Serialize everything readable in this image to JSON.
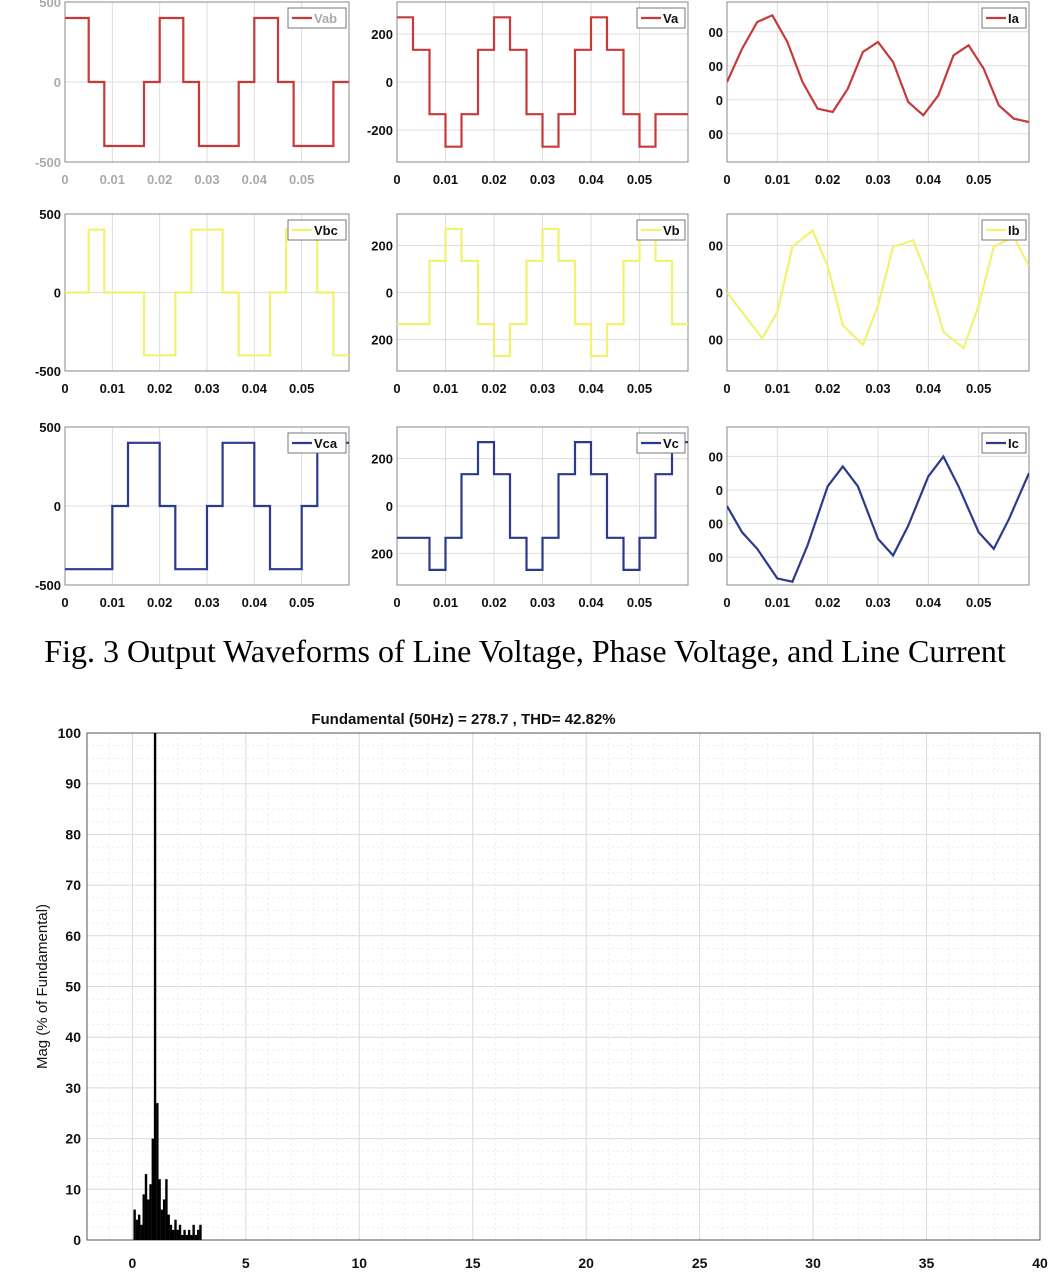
{
  "caption": "Fig. 3 Output Waveforms of Line Voltage, Phase Voltage, and Line Current",
  "chart_data": [
    {
      "id": "vab",
      "type": "line",
      "legend": "Vab",
      "color": "#c83a3a",
      "faint": true,
      "xlim": [
        0,
        0.06
      ],
      "ylim": [
        -500,
        500
      ],
      "xticks": [
        "0",
        "0.01",
        "0.02",
        "0.03",
        "0.04",
        "0.05"
      ],
      "yticks": [
        "500",
        "0",
        "-500"
      ],
      "x": [
        0,
        0.0017,
        0.0017,
        0.005,
        0.005,
        0.0083,
        0.0083,
        0.0167,
        0.0167,
        0.02,
        0.02,
        0.0217,
        0.0217,
        0.025,
        0.025,
        0.0283,
        0.0283,
        0.0367,
        0.0367,
        0.04,
        0.04,
        0.0417,
        0.0417,
        0.045,
        0.045,
        0.0483,
        0.0483,
        0.0567,
        0.0567,
        0.06
      ],
      "y": [
        400,
        400,
        400,
        400,
        0,
        0,
        -400,
        -400,
        0,
        0,
        400,
        400,
        400,
        400,
        0,
        0,
        -400,
        -400,
        0,
        0,
        400,
        400,
        400,
        400,
        0,
        0,
        -400,
        -400,
        0,
        0
      ]
    },
    {
      "id": "va",
      "type": "line",
      "legend": "Va",
      "color": "#c83a3a",
      "xlim": [
        0,
        0.06
      ],
      "ylim": [
        -330,
        330
      ],
      "xticks": [
        "0",
        "0.01",
        "0.02",
        "0.03",
        "0.04",
        "0.05"
      ],
      "yticks": [
        "200",
        "0",
        "-200"
      ],
      "x": [
        0,
        0.0033,
        0.0033,
        0.0067,
        0.0067,
        0.01,
        0.01,
        0.0133,
        0.0133,
        0.0167,
        0.0167,
        0.02,
        0.02,
        0.0233,
        0.0233,
        0.0267,
        0.0267,
        0.03,
        0.03,
        0.0333,
        0.0333,
        0.0367,
        0.0367,
        0.04,
        0.04,
        0.0433,
        0.0433,
        0.0467,
        0.0467,
        0.05,
        0.05,
        0.0533,
        0.0533,
        0.0567,
        0.0567,
        0.06
      ],
      "y": [
        267,
        267,
        133,
        133,
        -133,
        -133,
        -267,
        -267,
        -133,
        -133,
        133,
        133,
        267,
        267,
        133,
        133,
        -133,
        -133,
        -267,
        -267,
        -133,
        -133,
        133,
        133,
        267,
        267,
        133,
        133,
        -133,
        -133,
        -267,
        -267,
        -133,
        -133,
        -133,
        -133
      ]
    },
    {
      "id": "ia",
      "type": "line",
      "legend": "Ia",
      "color": "#c83a3a",
      "xlim": [
        0,
        0.06
      ],
      "ylim": [
        -1.2,
        1.2
      ],
      "xticks": [
        "0",
        "0.01",
        "0.02",
        "0.03",
        "0.04",
        "0.05"
      ],
      "yticks": [
        "00",
        "00",
        "0",
        "00"
      ],
      "x": [
        0,
        0.003,
        0.006,
        0.009,
        0.012,
        0.015,
        0.018,
        0.021,
        0.024,
        0.027,
        0.03,
        0.033,
        0.036,
        0.039,
        0.042,
        0.045,
        0.048,
        0.051,
        0.054,
        0.057,
        0.06
      ],
      "y": [
        0,
        0.5,
        0.9,
        1.0,
        0.6,
        0.0,
        -0.4,
        -0.45,
        -0.1,
        0.45,
        0.6,
        0.3,
        -0.3,
        -0.5,
        -0.2,
        0.4,
        0.55,
        0.2,
        -0.35,
        -0.55,
        -0.6
      ]
    },
    {
      "id": "vbc",
      "type": "line",
      "legend": "Vbc",
      "color": "#f4f170",
      "xlim": [
        0,
        0.06
      ],
      "ylim": [
        -500,
        500
      ],
      "xticks": [
        "0",
        "0.01",
        "0.02",
        "0.03",
        "0.04",
        "0.05"
      ],
      "yticks": [
        "500",
        "0",
        "-500"
      ],
      "x": [
        0,
        0.005,
        0.005,
        0.0083,
        0.0083,
        0.0117,
        0.0117,
        0.0167,
        0.0167,
        0.0233,
        0.0233,
        0.0267,
        0.0267,
        0.0333,
        0.0333,
        0.0367,
        0.0367,
        0.0433,
        0.0433,
        0.0467,
        0.0467,
        0.0533,
        0.0533,
        0.0567,
        0.0567,
        0.06
      ],
      "y": [
        0,
        0,
        400,
        400,
        0,
        0,
        0,
        0,
        -400,
        -400,
        0,
        0,
        400,
        400,
        0,
        0,
        -400,
        -400,
        0,
        0,
        400,
        400,
        0,
        0,
        -400,
        -400
      ]
    },
    {
      "id": "vb",
      "type": "line",
      "legend": "Vb",
      "color": "#f4f170",
      "xlim": [
        0,
        0.06
      ],
      "ylim": [
        -330,
        330
      ],
      "xticks": [
        "0",
        "0.01",
        "0.02",
        "0.03",
        "0.04",
        "0.05"
      ],
      "yticks": [
        "200",
        "0",
        "200"
      ],
      "x": [
        0,
        0.0067,
        0.0067,
        0.01,
        0.01,
        0.0133,
        0.0133,
        0.0167,
        0.0167,
        0.02,
        0.02,
        0.0233,
        0.0233,
        0.0267,
        0.0267,
        0.03,
        0.03,
        0.0333,
        0.0333,
        0.0367,
        0.0367,
        0.04,
        0.04,
        0.0433,
        0.0433,
        0.0467,
        0.0467,
        0.05,
        0.05,
        0.0533,
        0.0533,
        0.0567,
        0.0567,
        0.06
      ],
      "y": [
        -133,
        -133,
        133,
        133,
        267,
        267,
        133,
        133,
        -133,
        -133,
        -267,
        -267,
        -133,
        -133,
        133,
        133,
        267,
        267,
        133,
        133,
        -133,
        -133,
        -267,
        -267,
        -133,
        -133,
        133,
        133,
        267,
        267,
        133,
        133,
        -133,
        -133
      ]
    },
    {
      "id": "ib",
      "type": "line",
      "legend": "Ib",
      "color": "#f4f170",
      "xlim": [
        0,
        0.06
      ],
      "ylim": [
        -1.2,
        1.2
      ],
      "xticks": [
        "0",
        "0.01",
        "0.02",
        "0.03",
        "0.04",
        "0.05"
      ],
      "yticks": [
        "00",
        "0",
        "00"
      ],
      "x": [
        0,
        0.003,
        0.007,
        0.01,
        0.013,
        0.017,
        0.02,
        0.023,
        0.027,
        0.03,
        0.033,
        0.037,
        0.04,
        0.043,
        0.047,
        0.05,
        0.053,
        0.057,
        0.06
      ],
      "y": [
        0,
        -0.3,
        -0.7,
        -0.3,
        0.7,
        0.95,
        0.4,
        -0.5,
        -0.8,
        -0.2,
        0.7,
        0.8,
        0.2,
        -0.6,
        -0.85,
        -0.2,
        0.7,
        0.85,
        0.4
      ]
    },
    {
      "id": "vca",
      "type": "line",
      "legend": "Vca",
      "color": "#2b3a8c",
      "xlim": [
        0,
        0.06
      ],
      "ylim": [
        -500,
        500
      ],
      "xticks": [
        "0",
        "0.01",
        "0.02",
        "0.03",
        "0.04",
        "0.05"
      ],
      "yticks": [
        "500",
        "0",
        "-500"
      ],
      "x": [
        0,
        0.01,
        0.01,
        0.0133,
        0.0133,
        0.02,
        0.02,
        0.0233,
        0.0233,
        0.03,
        0.03,
        0.0333,
        0.0333,
        0.04,
        0.04,
        0.0433,
        0.0433,
        0.05,
        0.05,
        0.0533,
        0.0533,
        0.06
      ],
      "y": [
        -400,
        -400,
        0,
        0,
        400,
        400,
        0,
        0,
        -400,
        -400,
        0,
        0,
        400,
        400,
        0,
        0,
        -400,
        -400,
        0,
        0,
        400,
        400
      ]
    },
    {
      "id": "vc",
      "type": "line",
      "legend": "Vc",
      "color": "#2b3a8c",
      "xlim": [
        0,
        0.06
      ],
      "ylim": [
        -330,
        330
      ],
      "xticks": [
        "0",
        "0.01",
        "0.02",
        "0.03",
        "0.04",
        "0.05"
      ],
      "yticks": [
        "200",
        "0",
        "200"
      ],
      "x": [
        0,
        0.0067,
        0.0067,
        0.01,
        0.01,
        0.0133,
        0.0133,
        0.0167,
        0.0167,
        0.02,
        0.02,
        0.0233,
        0.0233,
        0.0267,
        0.0267,
        0.03,
        0.03,
        0.0333,
        0.0333,
        0.0367,
        0.0367,
        0.04,
        0.04,
        0.0433,
        0.0433,
        0.0467,
        0.0467,
        0.05,
        0.05,
        0.0533,
        0.0533,
        0.0567,
        0.0567,
        0.06
      ],
      "y": [
        -133,
        -133,
        -267,
        -267,
        -133,
        -133,
        133,
        133,
        267,
        267,
        133,
        133,
        -133,
        -133,
        -267,
        -267,
        -133,
        -133,
        133,
        133,
        267,
        267,
        133,
        133,
        -133,
        -133,
        -267,
        -267,
        -133,
        -133,
        133,
        133,
        267,
        267
      ]
    },
    {
      "id": "ic",
      "type": "line",
      "legend": "Ic",
      "color": "#2b3a8c",
      "xlim": [
        0,
        0.06
      ],
      "ylim": [
        -1.2,
        1.2
      ],
      "xticks": [
        "0",
        "0.01",
        "0.02",
        "0.03",
        "0.04",
        "0.05"
      ],
      "yticks": [
        "00",
        "0",
        "00",
        "00"
      ],
      "x": [
        0,
        0.003,
        0.006,
        0.01,
        0.013,
        0.016,
        0.02,
        0.023,
        0.026,
        0.03,
        0.033,
        0.036,
        0.04,
        0.043,
        0.046,
        0.05,
        0.053,
        0.056,
        0.06
      ],
      "y": [
        0,
        -0.4,
        -0.65,
        -1.1,
        -1.15,
        -0.6,
        0.3,
        0.6,
        0.3,
        -0.5,
        -0.75,
        -0.3,
        0.45,
        0.75,
        0.3,
        -0.4,
        -0.65,
        -0.2,
        0.5
      ]
    },
    {
      "id": "fft",
      "type": "bar",
      "title": "Fundamental (50Hz) = 278.7 , THD= 42.82%",
      "ylabel": "Mag (% of Fundamental)",
      "xlim": [
        -2,
        40
      ],
      "ylim": [
        0,
        100
      ],
      "xticks": [
        "0",
        "5",
        "10",
        "15",
        "20",
        "25",
        "30",
        "35",
        "40"
      ],
      "yticks": [
        "0",
        "10",
        "20",
        "30",
        "40",
        "50",
        "60",
        "70",
        "80",
        "90",
        "100"
      ],
      "x": [
        0.1,
        0.2,
        0.3,
        0.4,
        0.5,
        0.6,
        0.7,
        0.8,
        0.9,
        1.0,
        1.1,
        1.2,
        1.3,
        1.4,
        1.5,
        1.6,
        1.7,
        1.8,
        1.9,
        2.0,
        2.1,
        2.2,
        2.3,
        2.4,
        2.5,
        2.6,
        2.7,
        2.8,
        2.9,
        3.0
      ],
      "y": [
        6,
        4,
        5,
        3,
        9,
        13,
        8,
        11,
        20,
        100,
        27,
        12,
        6,
        8,
        12,
        5,
        3,
        2,
        4,
        2,
        3,
        1,
        2,
        1,
        2,
        1,
        3,
        1,
        2,
        3
      ]
    }
  ]
}
